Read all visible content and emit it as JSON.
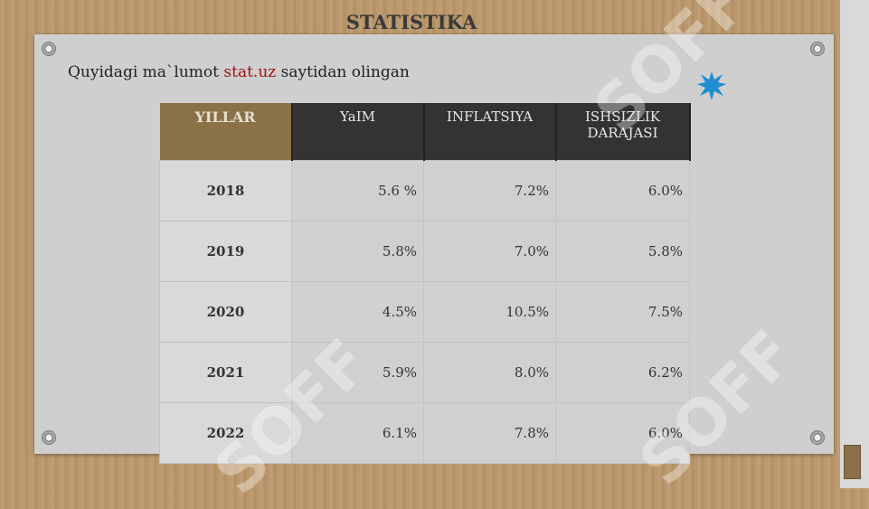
{
  "header": {
    "title": "STATISTIKA"
  },
  "intro": {
    "before": "Quyidagi ma`lumot ",
    "link": "stat.uz",
    "after": " saytidan olingan"
  },
  "watermark": "SOFF",
  "table": {
    "columns": [
      "YILLAR",
      "YaIM",
      "INFLATSIYA",
      "ISHSIZLIK DARAJASI"
    ],
    "rows": [
      [
        "2018",
        "5.6 %",
        "7.2%",
        "6.0%"
      ],
      [
        "2019",
        "5.8%",
        "7.0%",
        "5.8%"
      ],
      [
        "2020",
        "4.5%",
        "10.5%",
        "7.5%"
      ],
      [
        "2021",
        "5.9%",
        "8.0%",
        "6.2%"
      ],
      [
        "2022",
        "6.1%",
        "7.8%",
        "6.0%"
      ]
    ]
  }
}
